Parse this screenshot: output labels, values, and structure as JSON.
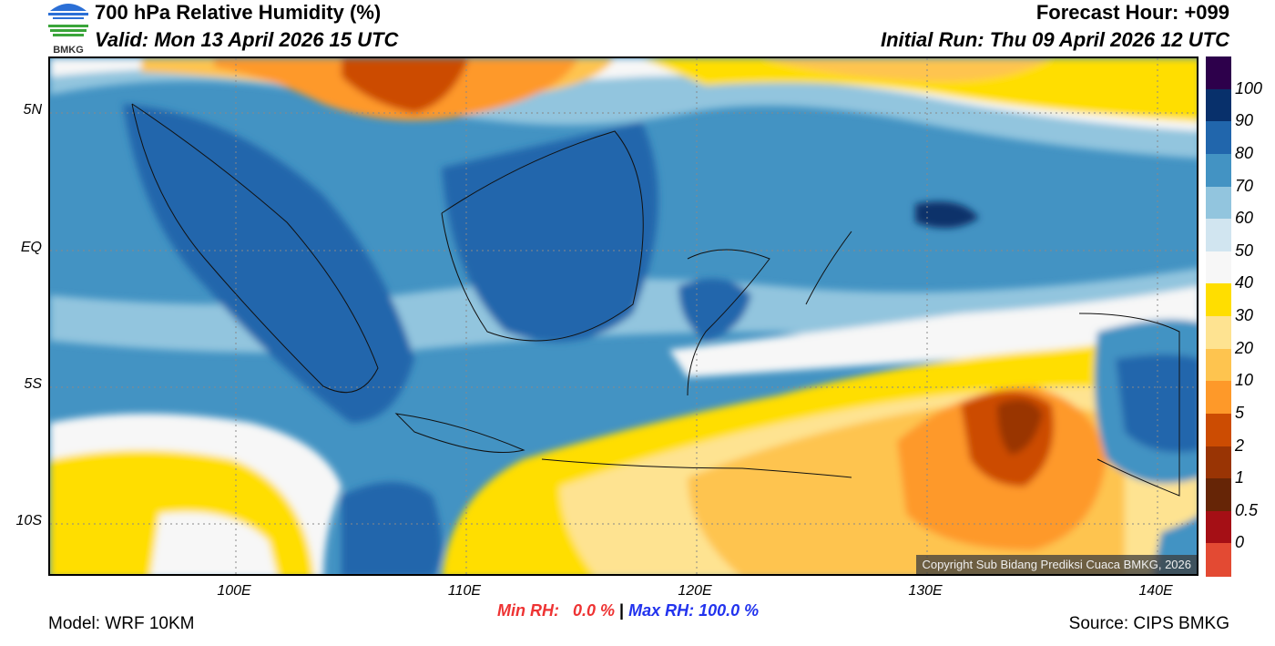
{
  "header": {
    "title": "700 hPa Relative Humidity (%)",
    "valid": "Valid: Mon 13 April 2026 15 UTC",
    "forecast_hour": "Forecast Hour: +099",
    "initial_run": "Initial Run: Thu 09 April 2026 12 UTC",
    "logo_text": "BMKG"
  },
  "map": {
    "lat_labels": [
      "5N",
      "EQ",
      "5S",
      "10S"
    ],
    "lon_labels": [
      "100E",
      "110E",
      "120E",
      "130E",
      "140E"
    ],
    "copyright": "Copyright Sub Bidang Prediksi Cuaca BMKG, 2026"
  },
  "colorbar": {
    "labels": [
      "100",
      "90",
      "80",
      "70",
      "60",
      "50",
      "40",
      "30",
      "20",
      "10",
      "5",
      "2",
      "1",
      "0.5",
      "0"
    ],
    "colors": [
      "#2d004b",
      "#08306b",
      "#2166ac",
      "#4393c3",
      "#92c5de",
      "#d1e5f0",
      "#f7f7f7",
      "#ffde00",
      "#fee391",
      "#fec44f",
      "#fe9929",
      "#cc4c02",
      "#993404",
      "#662506",
      "#a50f15",
      "#e34a33"
    ]
  },
  "footer": {
    "model": "Model: WRF 10KM",
    "min_rh": "Min RH:   0.0 %",
    "separator": "|",
    "max_rh": "Max RH: 100.0 %",
    "source": "Source: CIPS BMKG",
    "min_color": "#ee3333",
    "max_color": "#2233ee"
  }
}
